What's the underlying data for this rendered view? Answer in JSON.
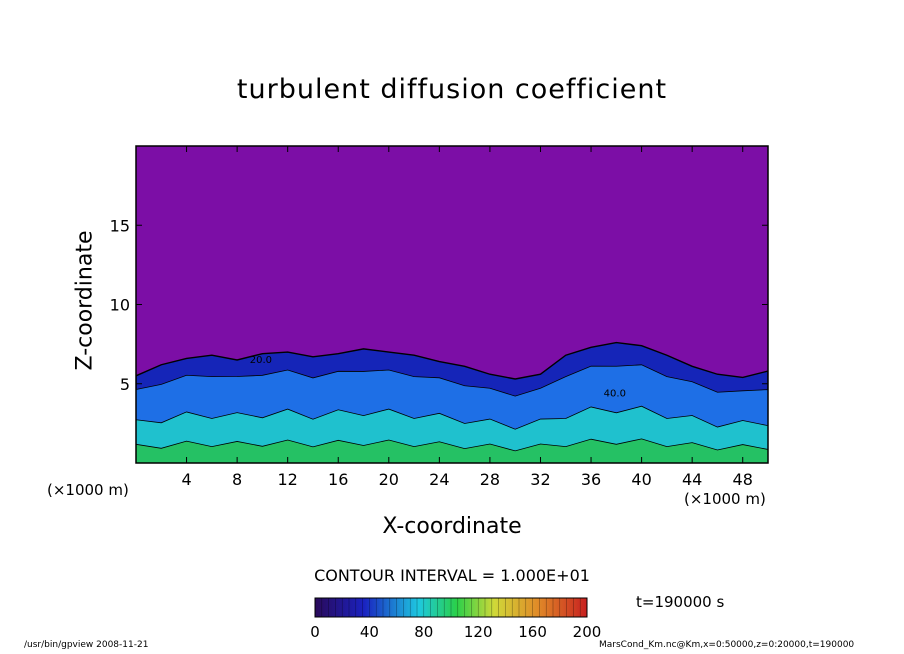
{
  "title": "turbulent diffusion coefficient",
  "xlabel": "X-coordinate",
  "ylabel": "Z-coordinate",
  "x_unit_left": "(×1000 m)",
  "x_unit_right": "(×1000 m)",
  "contour_interval": "CONTOUR INTERVAL = 1.000E+01",
  "time_label": "t=190000 s",
  "footer_left": "/usr/bin/gpview   2008-11-21",
  "footer_right": "MarsCond_Km.nc@Km,x=0:50000,z=0:20000,t=190000",
  "colors": {
    "background_field": "#7c0ea6",
    "low": "#1525b8",
    "mid": "#1e6fe6",
    "cyan": "#1fd6c8",
    "green": "#27c04a",
    "contour": "#000000"
  },
  "chart_data": {
    "type": "heatmap",
    "title": "turbulent diffusion coefficient",
    "xlabel": "X-coordinate",
    "ylabel": "Z-coordinate",
    "xlim": [
      0,
      50
    ],
    "ylim": [
      0,
      20
    ],
    "x_ticks": [
      4,
      8,
      12,
      16,
      20,
      24,
      28,
      32,
      36,
      40,
      44,
      48
    ],
    "y_ticks": [
      5,
      10,
      15
    ],
    "boundary_layer_top": {
      "x": [
        0,
        2,
        4,
        6,
        8,
        10,
        12,
        14,
        16,
        18,
        20,
        22,
        24,
        26,
        28,
        30,
        32,
        34,
        36,
        38,
        40,
        42,
        44,
        46,
        48,
        50
      ],
      "z": [
        5.5,
        6.2,
        6.6,
        6.8,
        6.5,
        6.9,
        7.0,
        6.7,
        6.9,
        7.2,
        7.0,
        6.8,
        6.4,
        6.1,
        5.6,
        5.3,
        5.6,
        6.8,
        7.3,
        7.6,
        7.4,
        6.8,
        6.1,
        5.6,
        5.4,
        5.8
      ]
    },
    "colorbar": {
      "min": 0,
      "max": 200,
      "ticks": [
        0,
        40,
        80,
        120,
        160,
        200
      ]
    },
    "contour_labels": [
      "20.0",
      "40.0"
    ]
  }
}
